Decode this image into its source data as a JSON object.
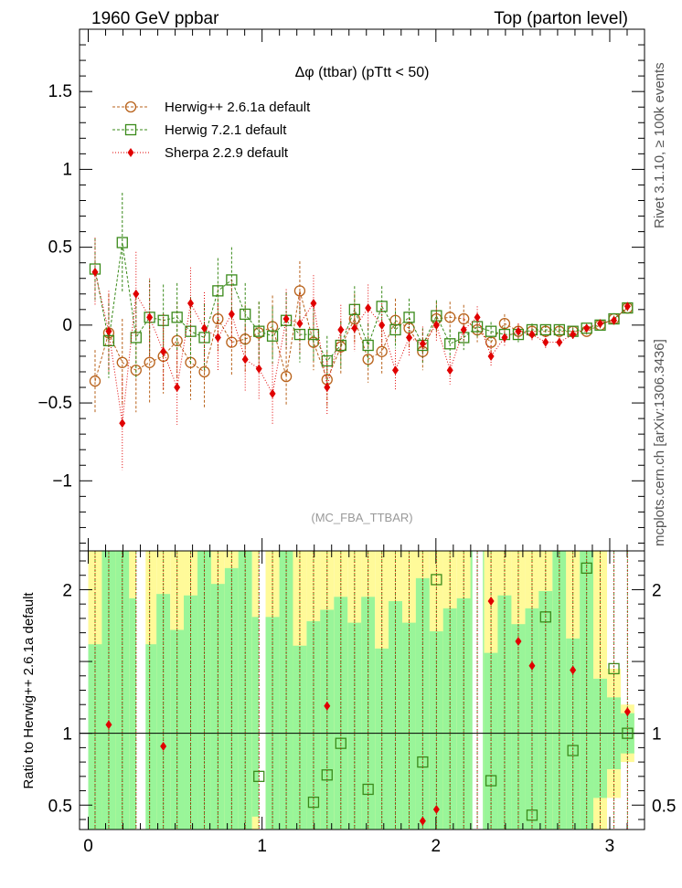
{
  "header": {
    "left": "1960 GeV ppbar",
    "right": "Top (parton level)",
    "plot_title": "Δφ (ttbar) (pTtt < 50)",
    "side_rivet": "Rivet 3.1.10, ≥ 100k events",
    "side_mcplots": "mcplots.cern.ch [arXiv:1306.3436]",
    "analysis_tag": "(MC_FBA_TTBAR)"
  },
  "colors": {
    "herwigpp": "#b8621b",
    "herwig7": "#3a8a1a",
    "sherpa": "#e00000",
    "band_inner": "#99f599",
    "band_outer": "#fffa99"
  },
  "chart_data": [
    {
      "type": "scatter",
      "title": "Δφ (ttbar) (pTtt < 50)",
      "xlabel": "",
      "ylabel": "",
      "xlim": [
        -0.05,
        3.2
      ],
      "ylim": [
        -1.45,
        1.9
      ],
      "yticks": [
        -1,
        -0.5,
        0,
        0.5,
        1,
        1.5
      ],
      "ytick_labels": [
        "−1",
        "−0.5",
        "0",
        "0.5",
        "1",
        "1.5"
      ],
      "xticks": [
        0,
        1,
        2,
        3
      ],
      "x": [
        0.0393,
        0.118,
        0.196,
        0.275,
        0.353,
        0.432,
        0.511,
        0.589,
        0.668,
        0.746,
        0.825,
        0.903,
        0.982,
        1.06,
        1.139,
        1.217,
        1.296,
        1.374,
        1.453,
        1.532,
        1.61,
        1.689,
        1.767,
        1.846,
        1.924,
        2.003,
        2.081,
        2.16,
        2.238,
        2.317,
        2.395,
        2.474,
        2.553,
        2.631,
        2.71,
        2.788,
        2.867,
        2.945,
        3.024,
        3.102
      ],
      "legend": [
        {
          "label": "Herwig++ 2.6.1a default",
          "marker": "circle"
        },
        {
          "label": "Herwig 7.2.1 default",
          "marker": "square"
        },
        {
          "label": "Sherpa 2.2.9 default",
          "marker": "diamond"
        }
      ],
      "series": [
        {
          "name": "Herwig++ 2.6.1a default",
          "values": [
            -0.36,
            -0.05,
            -0.24,
            -0.29,
            -0.24,
            -0.2,
            -0.1,
            -0.24,
            -0.3,
            0.04,
            -0.11,
            -0.09,
            -0.05,
            -0.01,
            -0.33,
            0.22,
            -0.11,
            -0.35,
            -0.14,
            0.04,
            -0.22,
            -0.17,
            0.03,
            -0.02,
            -0.17,
            0.04,
            0.05,
            0.04,
            -0.03,
            -0.11,
            0.01,
            -0.04,
            -0.04,
            -0.04,
            -0.04,
            -0.04,
            -0.04,
            0.0,
            0.04,
            0.11
          ],
          "errors": [
            0.2,
            0.25,
            0.28,
            0.27,
            0.26,
            0.24,
            0.25,
            0.24,
            0.23,
            0.22,
            0.22,
            0.22,
            0.2,
            0.2,
            0.19,
            0.19,
            0.18,
            0.18,
            0.17,
            0.16,
            0.15,
            0.14,
            0.14,
            0.13,
            0.12,
            0.11,
            0.1,
            0.09,
            0.08,
            0.07,
            0.06,
            0.05,
            0.04,
            0.04,
            0.03,
            0.03,
            0.02,
            0.02,
            0.02,
            0.02
          ]
        },
        {
          "name": "Herwig 7.2.1 default",
          "values": [
            0.36,
            -0.1,
            0.53,
            -0.08,
            0.05,
            0.03,
            0.05,
            -0.04,
            -0.08,
            0.22,
            0.29,
            0.07,
            -0.04,
            -0.07,
            0.03,
            -0.06,
            -0.06,
            -0.23,
            -0.13,
            0.1,
            -0.13,
            0.12,
            -0.03,
            0.05,
            -0.13,
            0.06,
            -0.12,
            -0.08,
            -0.01,
            -0.04,
            -0.06,
            -0.06,
            -0.03,
            -0.03,
            -0.03,
            -0.04,
            -0.02,
            0.0,
            0.04,
            0.11
          ],
          "errors": [
            0.2,
            0.24,
            0.32,
            0.26,
            0.24,
            0.23,
            0.22,
            0.22,
            0.22,
            0.21,
            0.21,
            0.2,
            0.19,
            0.19,
            0.18,
            0.18,
            0.17,
            0.16,
            0.15,
            0.15,
            0.14,
            0.13,
            0.12,
            0.12,
            0.11,
            0.1,
            0.09,
            0.08,
            0.07,
            0.06,
            0.05,
            0.05,
            0.04,
            0.03,
            0.03,
            0.02,
            0.02,
            0.02,
            0.02,
            0.02
          ]
        },
        {
          "name": "Sherpa 2.2.9 default",
          "values": [
            0.34,
            -0.04,
            -0.63,
            0.2,
            0.05,
            -0.17,
            -0.4,
            0.14,
            -0.02,
            -0.08,
            0.07,
            -0.22,
            -0.28,
            -0.44,
            0.04,
            0.01,
            0.14,
            -0.4,
            -0.03,
            -0.02,
            0.11,
            0.0,
            -0.29,
            -0.08,
            -0.12,
            0.0,
            -0.29,
            -0.03,
            0.05,
            -0.2,
            -0.08,
            -0.04,
            -0.06,
            -0.11,
            -0.11,
            -0.06,
            -0.02,
            0.01,
            0.03,
            0.12
          ],
          "errors": [
            0.22,
            0.26,
            0.3,
            0.27,
            0.25,
            0.24,
            0.24,
            0.23,
            0.23,
            0.22,
            0.22,
            0.21,
            0.2,
            0.2,
            0.19,
            0.19,
            0.18,
            0.17,
            0.16,
            0.15,
            0.15,
            0.14,
            0.13,
            0.12,
            0.11,
            0.1,
            0.09,
            0.08,
            0.07,
            0.07,
            0.06,
            0.05,
            0.04,
            0.04,
            0.03,
            0.03,
            0.02,
            0.02,
            0.02,
            0.02
          ]
        }
      ]
    },
    {
      "type": "scatter",
      "title": "",
      "xlabel": "",
      "ylabel": "Ratio to Herwig++ 2.6.1a default",
      "xlim": [
        -0.05,
        3.2
      ],
      "ylim": [
        0.33,
        2.27
      ],
      "yticks": [
        0.5,
        1,
        2
      ],
      "ytick_labels": [
        "0.5",
        "1",
        "2"
      ],
      "xticks": [
        0,
        1,
        2,
        3
      ],
      "xtick_labels": [
        "0",
        "1",
        "2",
        "3"
      ],
      "reference_line": 1,
      "band_inner": [
        [
          0.33,
          1.62
        ],
        [
          0.33,
          2.27
        ],
        [
          0.33,
          2.27
        ],
        [
          0.33,
          1.94
        ],
        [
          0.33,
          1.62
        ],
        [
          0.33,
          1.97
        ],
        [
          0.33,
          1.72
        ],
        [
          0.33,
          1.96
        ],
        [
          0.33,
          2.27
        ],
        [
          0.33,
          2.04
        ],
        [
          0.33,
          2.15
        ],
        [
          0.33,
          2.27
        ],
        [
          0.42,
          1.81
        ],
        [
          0.33,
          1.81
        ],
        [
          0.33,
          2.27
        ],
        [
          0.33,
          1.61
        ],
        [
          0.33,
          1.78
        ],
        [
          0.33,
          1.86
        ],
        [
          0.33,
          1.95
        ],
        [
          0.33,
          1.77
        ],
        [
          0.33,
          1.95
        ],
        [
          0.33,
          1.59
        ],
        [
          0.33,
          1.92
        ],
        [
          0.33,
          1.77
        ],
        [
          0.33,
          2.08
        ],
        [
          0.33,
          1.71
        ],
        [
          0.33,
          1.87
        ],
        [
          0.33,
          1.94
        ],
        [
          0.33,
          2.27
        ],
        [
          0.33,
          1.56
        ],
        [
          0.33,
          1.96
        ],
        [
          0.33,
          1.76
        ],
        [
          0.33,
          1.87
        ],
        [
          0.33,
          1.99
        ],
        [
          0.33,
          2.27
        ],
        [
          0.33,
          1.66
        ],
        [
          0.33,
          2.27
        ],
        [
          0.55,
          1.38
        ],
        [
          0.75,
          1.25
        ],
        [
          0.86,
          1.14
        ]
      ],
      "band_outer": [
        [
          0.33,
          2.27
        ],
        [
          0.33,
          2.27
        ],
        [
          0.33,
          2.27
        ],
        [
          0.33,
          2.27
        ],
        [
          0.33,
          2.27
        ],
        [
          0.33,
          2.27
        ],
        [
          0.33,
          2.27
        ],
        [
          0.33,
          2.27
        ],
        [
          0.33,
          2.27
        ],
        [
          0.33,
          2.27
        ],
        [
          0.33,
          2.27
        ],
        [
          0.33,
          2.27
        ],
        [
          0.33,
          2.27
        ],
        [
          0.33,
          2.27
        ],
        [
          0.33,
          2.27
        ],
        [
          0.33,
          2.27
        ],
        [
          0.33,
          2.27
        ],
        [
          0.33,
          2.27
        ],
        [
          0.33,
          2.27
        ],
        [
          0.33,
          2.27
        ],
        [
          0.33,
          2.27
        ],
        [
          0.33,
          2.27
        ],
        [
          0.33,
          2.27
        ],
        [
          0.33,
          2.27
        ],
        [
          0.33,
          2.27
        ],
        [
          0.33,
          2.27
        ],
        [
          0.33,
          2.27
        ],
        [
          0.33,
          2.27
        ],
        [
          0.33,
          2.27
        ],
        [
          0.33,
          2.27
        ],
        [
          0.33,
          2.27
        ],
        [
          0.33,
          2.27
        ],
        [
          0.33,
          2.27
        ],
        [
          0.33,
          2.27
        ],
        [
          0.33,
          2.27
        ],
        [
          0.33,
          2.27
        ],
        [
          0.33,
          2.27
        ],
        [
          0.33,
          2.27
        ],
        [
          0.55,
          1.45
        ],
        [
          0.8,
          1.2
        ]
      ],
      "series": [
        {
          "name": "Herwig 7.2.1 default",
          "values": [
            null,
            null,
            null,
            null,
            null,
            null,
            null,
            null,
            null,
            null,
            null,
            null,
            0.7,
            null,
            null,
            null,
            0.52,
            0.71,
            0.93,
            null,
            0.61,
            null,
            null,
            null,
            0.8,
            2.07,
            null,
            null,
            null,
            0.67,
            null,
            null,
            0.43,
            1.81,
            null,
            0.88,
            2.15,
            null,
            1.45,
            1.0
          ]
        },
        {
          "name": "Sherpa 2.2.9 default",
          "values": [
            null,
            1.06,
            null,
            null,
            null,
            0.91,
            null,
            null,
            null,
            null,
            null,
            null,
            null,
            null,
            null,
            null,
            null,
            1.19,
            null,
            null,
            null,
            null,
            null,
            null,
            0.39,
            0.47,
            null,
            null,
            null,
            1.92,
            null,
            1.64,
            1.47,
            null,
            null,
            1.44,
            null,
            null,
            null,
            1.15
          ]
        }
      ]
    }
  ]
}
